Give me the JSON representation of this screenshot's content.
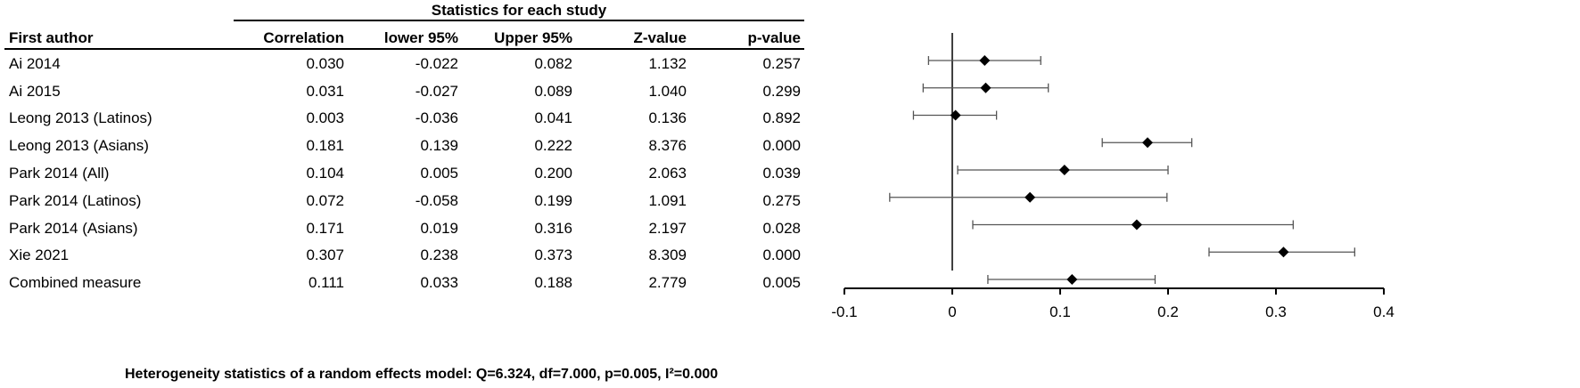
{
  "table": {
    "group_title": "Statistics for each study",
    "headers": {
      "author": "First author",
      "correlation": "Correlation",
      "lower": "lower 95%",
      "upper": "Upper 95%",
      "z": "Z-value",
      "p": "p-value"
    },
    "rows": [
      {
        "author": "Ai 2014",
        "correlation": "0.030",
        "lower": "-0.022",
        "upper": "0.082",
        "z": "1.132",
        "p": "0.257"
      },
      {
        "author": "Ai 2015",
        "correlation": "0.031",
        "lower": "-0.027",
        "upper": "0.089",
        "z": "1.040",
        "p": "0.299"
      },
      {
        "author": "Leong 2013 (Latinos)",
        "correlation": "0.003",
        "lower": "-0.036",
        "upper": "0.041",
        "z": "0.136",
        "p": "0.892"
      },
      {
        "author": "Leong 2013 (Asians)",
        "correlation": "0.181",
        "lower": "0.139",
        "upper": "0.222",
        "z": "8.376",
        "p": "0.000"
      },
      {
        "author": "Park 2014 (All)",
        "correlation": "0.104",
        "lower": "0.005",
        "upper": "0.200",
        "z": "2.063",
        "p": "0.039"
      },
      {
        "author": "Park 2014 (Latinos)",
        "correlation": "0.072",
        "lower": "-0.058",
        "upper": "0.199",
        "z": "1.091",
        "p": "0.275"
      },
      {
        "author": "Park 2014 (Asians)",
        "correlation": "0.171",
        "lower": "0.019",
        "upper": "0.316",
        "z": "2.197",
        "p": "0.028"
      },
      {
        "author": "Xie 2021",
        "correlation": "0.307",
        "lower": "0.238",
        "upper": "0.373",
        "z": "8.309",
        "p": "0.000"
      },
      {
        "author": "Combined measure",
        "correlation": "0.111",
        "lower": "0.033",
        "upper": "0.188",
        "z": "2.779",
        "p": "0.005"
      }
    ]
  },
  "footer": "Heterogeneity statistics of a random effects model: Q=6.324, df=7.000, p=0.005, I²=0.000",
  "chart_data": {
    "type": "scatter",
    "subtype": "forest",
    "xlim": [
      -0.1,
      0.4
    ],
    "xticks": [
      "-0.1",
      "0",
      "0.1",
      "0.2",
      "0.3",
      "0.4"
    ],
    "xtick_values": [
      -0.1,
      0,
      0.1,
      0.2,
      0.3,
      0.4
    ],
    "reference_line": 0,
    "grid": false,
    "points": [
      {
        "label": "Ai 2014",
        "estimate": 0.03,
        "lower": -0.022,
        "upper": 0.082
      },
      {
        "label": "Ai 2015",
        "estimate": 0.031,
        "lower": -0.027,
        "upper": 0.089
      },
      {
        "label": "Leong 2013 (Latinos)",
        "estimate": 0.003,
        "lower": -0.036,
        "upper": 0.041
      },
      {
        "label": "Leong 2013 (Asians)",
        "estimate": 0.181,
        "lower": 0.139,
        "upper": 0.222
      },
      {
        "label": "Park 2014 (All)",
        "estimate": 0.104,
        "lower": 0.005,
        "upper": 0.2
      },
      {
        "label": "Park 2014 (Latinos)",
        "estimate": 0.072,
        "lower": -0.058,
        "upper": 0.199
      },
      {
        "label": "Park 2014 (Asians)",
        "estimate": 0.171,
        "lower": 0.019,
        "upper": 0.316
      },
      {
        "label": "Xie 2021",
        "estimate": 0.307,
        "lower": 0.238,
        "upper": 0.373
      },
      {
        "label": "Combined measure",
        "estimate": 0.111,
        "lower": 0.033,
        "upper": 0.188
      }
    ]
  }
}
